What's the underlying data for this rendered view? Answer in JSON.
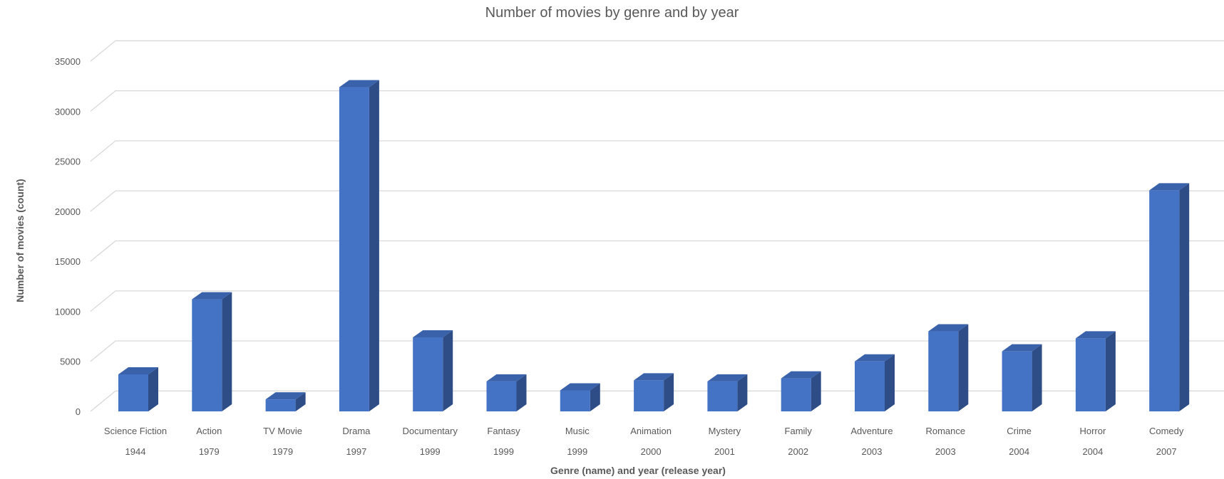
{
  "chart_data": {
    "type": "bar",
    "title": "Number of movies by genre and by year",
    "xlabel": "Genre (name) and year (release year)",
    "ylabel": "Number of movies (count)",
    "ylim": [
      0,
      35000
    ],
    "yticks": [
      0,
      5000,
      10000,
      15000,
      20000,
      25000,
      30000,
      35000
    ],
    "grid": true,
    "legend": "none",
    "bar_color": "#4472C4",
    "bar_side_color": "#2E4D87",
    "bar_top_color": "#3A62AA",
    "categories": [
      {
        "genre": "Science Fiction",
        "year": "1944"
      },
      {
        "genre": "Action",
        "year": "1979"
      },
      {
        "genre": "TV Movie",
        "year": "1979"
      },
      {
        "genre": "Drama",
        "year": "1997"
      },
      {
        "genre": "Documentary",
        "year": "1999"
      },
      {
        "genre": "Fantasy",
        "year": "1999"
      },
      {
        "genre": "Music",
        "year": "1999"
      },
      {
        "genre": "Animation",
        "year": "2000"
      },
      {
        "genre": "Mystery",
        "year": "2001"
      },
      {
        "genre": "Family",
        "year": "2002"
      },
      {
        "genre": "Adventure",
        "year": "2003"
      },
      {
        "genre": "Romance",
        "year": "2003"
      },
      {
        "genre": "Crime",
        "year": "2004"
      },
      {
        "genre": "Horror",
        "year": "2004"
      },
      {
        "genre": "Comedy",
        "year": "2007"
      }
    ],
    "values": [
      3700,
      11200,
      1200,
      32400,
      7400,
      3000,
      2100,
      3100,
      3000,
      3300,
      5000,
      8000,
      6000,
      7300,
      22100
    ]
  }
}
